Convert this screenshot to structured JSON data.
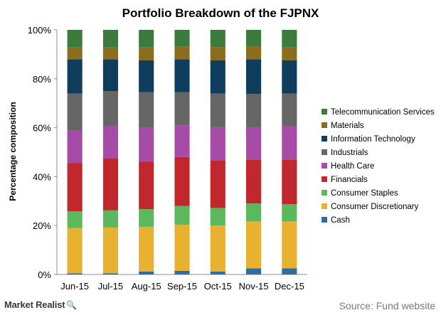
{
  "chart_data": {
    "type": "bar",
    "stacked": true,
    "title": "Portfolio Breakdown of the FJPNX",
    "xlabel": "",
    "ylabel": "Percentage composition",
    "ylim": [
      0,
      100
    ],
    "yticks": [
      0,
      20,
      40,
      60,
      80,
      100
    ],
    "ytick_labels": [
      "0%",
      "20%",
      "40%",
      "60%",
      "80%",
      "100%"
    ],
    "grid": false,
    "legend_position": "right",
    "categories": [
      "Jun-15",
      "Jul-15",
      "Aug-15",
      "Sep-15",
      "Oct-15",
      "Nov-15",
      "Dec-15"
    ],
    "series": [
      {
        "name": "Cash",
        "color": "#2e6e9e",
        "values": [
          0.5,
          0.5,
          1.2,
          1.5,
          1.2,
          2.5,
          2.5
        ]
      },
      {
        "name": "Consumer Discretionary",
        "color": "#e8b230",
        "values": [
          18.5,
          18.7,
          18.3,
          18.8,
          18.8,
          19.2,
          19.2
        ]
      },
      {
        "name": "Consumer Staples",
        "color": "#5cb85c",
        "values": [
          6.8,
          7.0,
          7.2,
          7.7,
          7.2,
          7.3,
          7.0
        ]
      },
      {
        "name": "Financials",
        "color": "#c0282d",
        "values": [
          19.7,
          21.3,
          19.5,
          20.0,
          19.5,
          18.0,
          18.3
        ]
      },
      {
        "name": "Health Care",
        "color": "#a64ca6",
        "values": [
          13.5,
          13.0,
          13.8,
          13.0,
          13.5,
          13.0,
          13.5
        ]
      },
      {
        "name": "Industrials",
        "color": "#666666",
        "values": [
          15.0,
          14.5,
          14.5,
          13.5,
          13.8,
          13.8,
          13.5
        ]
      },
      {
        "name": "Information Technology",
        "color": "#0f3d5e",
        "values": [
          14.0,
          13.0,
          13.0,
          13.5,
          13.5,
          14.2,
          13.5
        ]
      },
      {
        "name": "Materials",
        "color": "#8a6d1f",
        "values": [
          4.8,
          4.8,
          5.3,
          5.2,
          5.5,
          5.3,
          5.3
        ]
      },
      {
        "name": "Telecommunication Services",
        "color": "#3d7a3d",
        "values": [
          7.2,
          7.2,
          7.2,
          6.8,
          7.0,
          6.7,
          7.2
        ]
      }
    ]
  },
  "footer": {
    "brand": "Market Realist",
    "source": "Source: Fund website"
  }
}
